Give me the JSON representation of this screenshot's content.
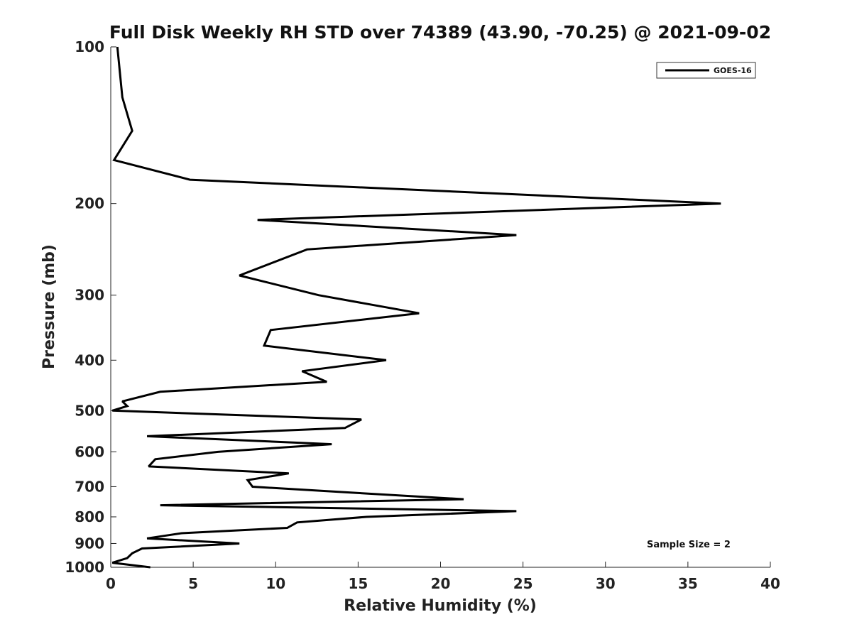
{
  "chart_data": {
    "type": "line",
    "title": "Full Disk Weekly RH STD over 74389 (43.90, -70.25) @ 2021-09-02",
    "xlabel": "Relative Humidity (%)",
    "ylabel": "Pressure (mb)",
    "xlim": [
      0,
      40
    ],
    "ylim": [
      100,
      1000
    ],
    "y_scale": "log",
    "y_reversed": true,
    "grid": false,
    "legend_position": "top-right",
    "x_ticks": [
      0,
      5,
      10,
      15,
      20,
      25,
      30,
      35,
      40
    ],
    "y_ticks": [
      100,
      200,
      300,
      400,
      500,
      600,
      700,
      800,
      900,
      1000
    ],
    "annotation": "Sample Size = 2",
    "series": [
      {
        "name": "GOES-16",
        "color": "#000000",
        "points": [
          [
            0.4,
            100
          ],
          [
            0.7,
            125
          ],
          [
            1.3,
            145
          ],
          [
            0.2,
            165
          ],
          [
            4.8,
            180
          ],
          [
            37.0,
            200
          ],
          [
            8.9,
            215
          ],
          [
            24.6,
            230
          ],
          [
            11.9,
            245
          ],
          [
            7.8,
            275
          ],
          [
            12.6,
            300
          ],
          [
            18.7,
            325
          ],
          [
            9.7,
            350
          ],
          [
            9.3,
            375
          ],
          [
            16.7,
            400
          ],
          [
            11.6,
            420
          ],
          [
            13.1,
            440
          ],
          [
            3.0,
            460
          ],
          [
            0.7,
            480
          ],
          [
            1.0,
            490
          ],
          [
            0.1,
            500
          ],
          [
            15.2,
            520
          ],
          [
            14.2,
            540
          ],
          [
            2.2,
            560
          ],
          [
            13.4,
            580
          ],
          [
            6.5,
            600
          ],
          [
            2.7,
            620
          ],
          [
            2.3,
            640
          ],
          [
            10.8,
            660
          ],
          [
            8.3,
            680
          ],
          [
            8.6,
            700
          ],
          [
            15.0,
            720
          ],
          [
            21.4,
            740
          ],
          [
            3.0,
            760
          ],
          [
            24.6,
            780
          ],
          [
            15.5,
            800
          ],
          [
            11.3,
            820
          ],
          [
            10.7,
            840
          ],
          [
            4.3,
            860
          ],
          [
            2.2,
            880
          ],
          [
            7.8,
            900
          ],
          [
            1.9,
            920
          ],
          [
            1.3,
            940
          ],
          [
            1.0,
            960
          ],
          [
            0.1,
            980
          ],
          [
            2.4,
            1000
          ]
        ]
      }
    ]
  }
}
